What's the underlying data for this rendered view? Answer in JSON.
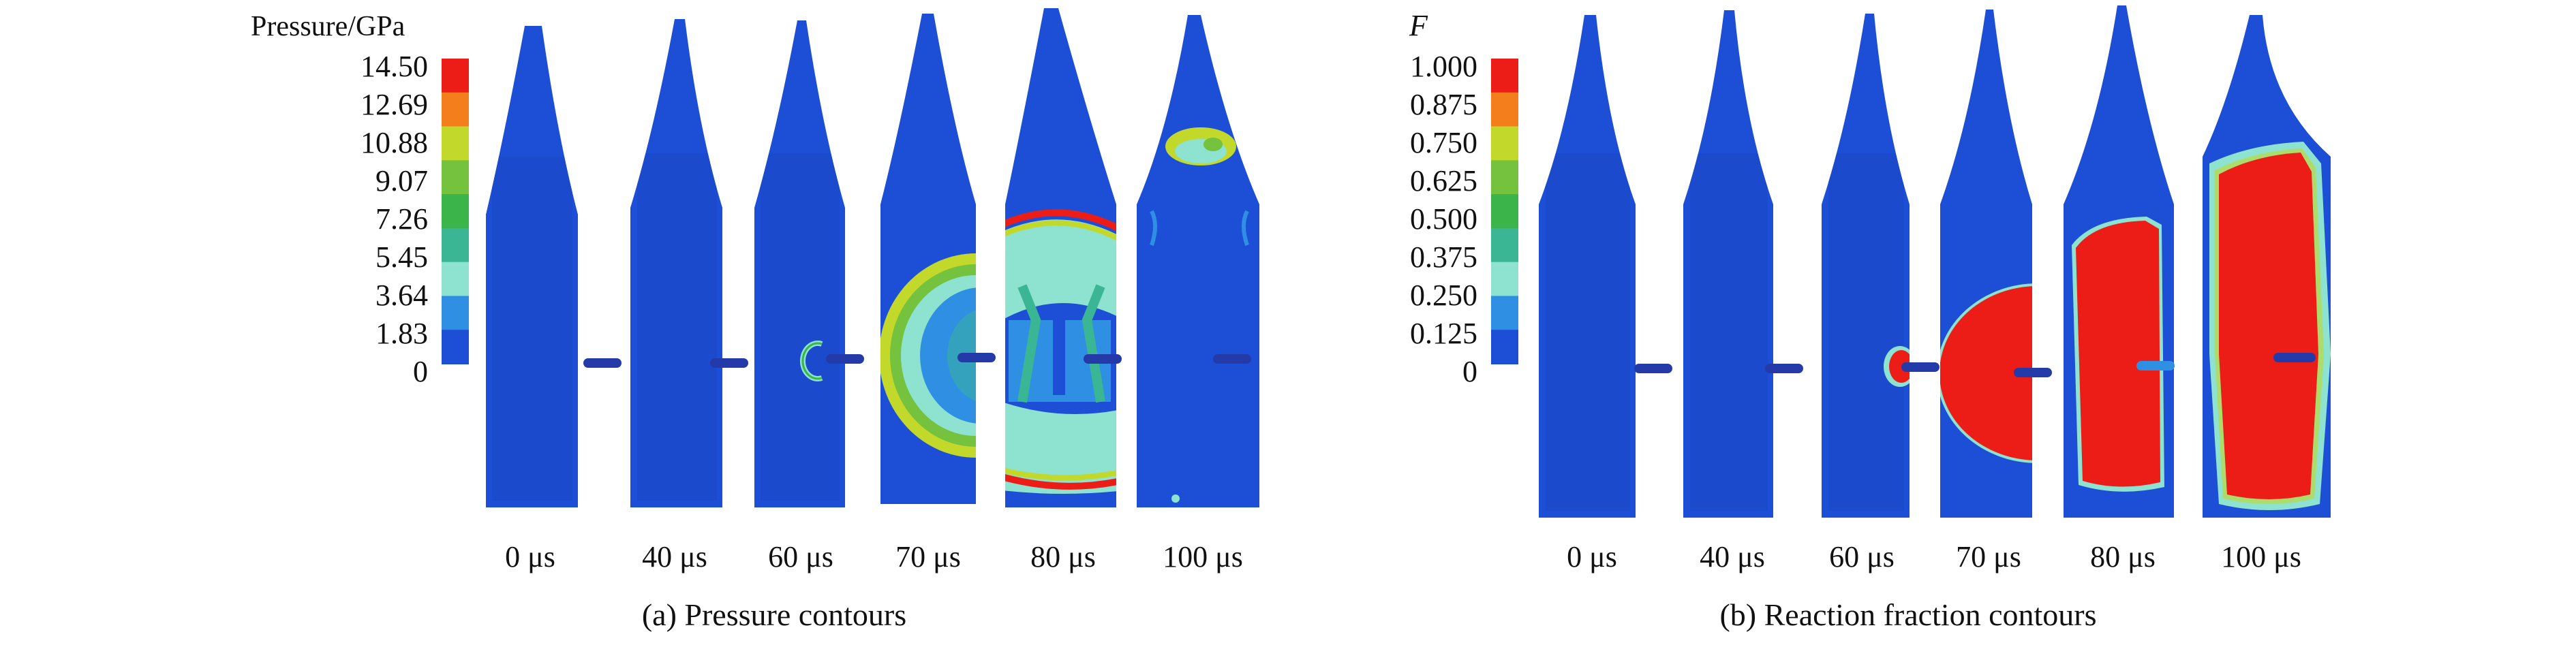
{
  "panels": [
    {
      "id": "pressure",
      "legend_title": "Pressure/GPa",
      "legend_title_italic": false,
      "legend_labels": [
        "14.50",
        "12.69",
        "10.88",
        "9.07",
        "7.26",
        "5.45",
        "3.64",
        "1.83",
        "0"
      ],
      "legend_colors": [
        "#ec1c17",
        "#f47d1c",
        "#c2d82a",
        "#74c23e",
        "#3bb54a",
        "#3ab695",
        "#8de2d0",
        "#2f8fe3",
        "#1d4fd6"
      ],
      "times": [
        "0 μs",
        "40 μs",
        "60 μs",
        "70 μs",
        "80 μs",
        "100 μs"
      ],
      "caption": "(a) Pressure contours"
    },
    {
      "id": "reaction",
      "legend_title": "F",
      "legend_title_italic": true,
      "legend_labels": [
        "1.000",
        "0.875",
        "0.750",
        "0.625",
        "0.500",
        "0.375",
        "0.250",
        "0.125",
        "0"
      ],
      "legend_colors": [
        "#ec1c17",
        "#f47d1c",
        "#c2d82a",
        "#74c23e",
        "#3bb54a",
        "#3ab695",
        "#8de2d0",
        "#2f8fe3",
        "#1d4fd6"
      ],
      "times": [
        "0 μs",
        "40 μs",
        "60 μs",
        "70 μs",
        "80 μs",
        "100 μs"
      ],
      "caption": "(b) Reaction fraction contours"
    }
  ],
  "colors": {
    "body_fill": "#1d4fd6",
    "inner_region": "#1a47c7",
    "projectile": "#243aa8",
    "red": "#ec1c17",
    "orange": "#f47d1c",
    "yellow_green": "#c2d82a",
    "green": "#3bb54a",
    "cyan": "#8de2d0",
    "light_blue": "#2f8fe3"
  }
}
